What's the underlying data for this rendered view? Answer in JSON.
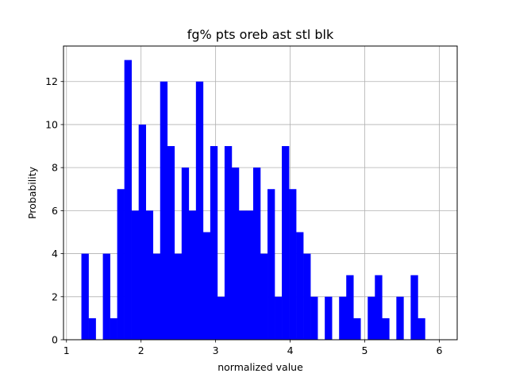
{
  "chart_data": {
    "type": "bar",
    "title": "fg% pts oreb ast stl blk",
    "xlabel": "normalized value",
    "ylabel": "Probability",
    "xlim": [
      0.96,
      6.24
    ],
    "ylim": [
      0,
      13.65
    ],
    "grid": true,
    "bar_color": "#0000ff",
    "x_ticks": [
      1,
      2,
      3,
      4,
      5,
      6
    ],
    "x_tick_labels": [
      "1",
      "2",
      "3",
      "4",
      "5",
      "6"
    ],
    "y_ticks": [
      0,
      2,
      4,
      6,
      8,
      10,
      12
    ],
    "y_tick_labels": [
      "0",
      "2",
      "4",
      "6",
      "8",
      "10",
      "12"
    ],
    "bin_start": 1.2,
    "bin_width": 0.096,
    "values": [
      4,
      1,
      0,
      4,
      1,
      7,
      13,
      6,
      10,
      6,
      4,
      12,
      9,
      4,
      8,
      6,
      12,
      5,
      9,
      2,
      9,
      8,
      6,
      6,
      8,
      4,
      7,
      2,
      9,
      7,
      5,
      4,
      2,
      0,
      2,
      0,
      2,
      3,
      1,
      0,
      2,
      3,
      1,
      0,
      2,
      0,
      3,
      1
    ]
  }
}
